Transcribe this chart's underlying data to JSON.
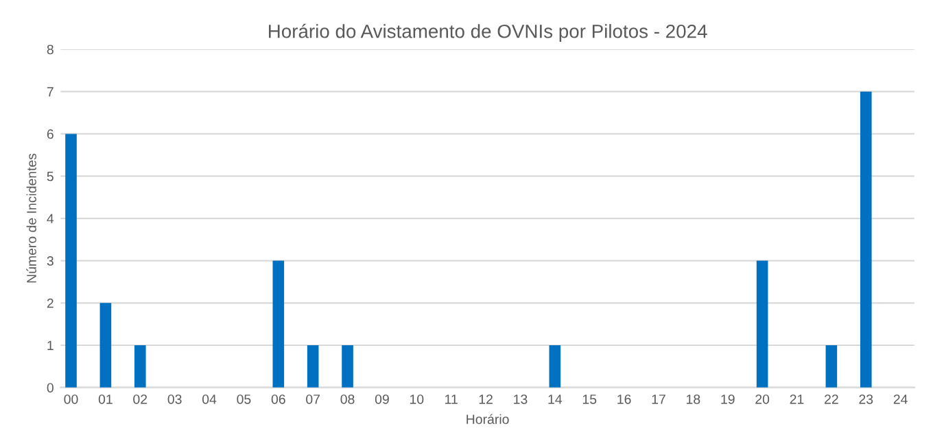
{
  "chart_data": {
    "type": "bar",
    "title": "Horário do Avistamento de OVNIs por Pilotos - 2024",
    "xlabel": "Horário",
    "ylabel": "Número de Incidentes",
    "categories": [
      "00",
      "01",
      "02",
      "03",
      "04",
      "05",
      "06",
      "07",
      "08",
      "09",
      "10",
      "11",
      "12",
      "13",
      "14",
      "15",
      "16",
      "17",
      "18",
      "19",
      "20",
      "21",
      "22",
      "23",
      "24"
    ],
    "values": [
      6,
      2,
      1,
      0,
      0,
      0,
      3,
      1,
      1,
      0,
      0,
      0,
      0,
      0,
      1,
      0,
      0,
      0,
      0,
      0,
      3,
      0,
      1,
      7,
      0
    ],
    "color": "#0070c0",
    "ylim": [
      0,
      8
    ],
    "yticks": [
      0,
      1,
      2,
      3,
      4,
      5,
      6,
      7,
      8
    ],
    "grid": "y"
  }
}
